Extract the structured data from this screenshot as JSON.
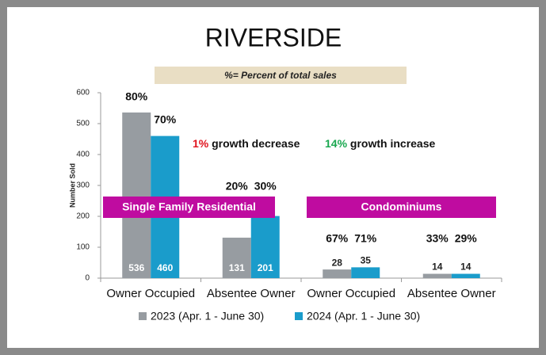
{
  "chart_data": {
    "type": "bar",
    "title": "RIVERSIDE",
    "subtitle": "%= Percent of total sales",
    "y_label": "Number Sold",
    "categories": [
      "Owner Occupied",
      "Absentee Owner",
      "Owner Occupied",
      "Absentee Owner"
    ],
    "series": [
      {
        "name": "2023 (Apr. 1 - June 30)",
        "color": "#979ca1",
        "values": [
          536,
          131,
          28,
          14
        ],
        "percent_labels": [
          "80%",
          "20%",
          "67%",
          "33%"
        ]
      },
      {
        "name": "2024 (Apr. 1 - June 30)",
        "color": "#1a9ccb",
        "values": [
          460,
          201,
          35,
          14
        ],
        "percent_labels": [
          "70%",
          "30%",
          "71%",
          "29%"
        ]
      }
    ],
    "ylim": [
      0,
      600
    ],
    "yticks": [
      0,
      100,
      200,
      300,
      400,
      500,
      600
    ],
    "annotations": [
      {
        "highlight": "1%",
        "text": "growth decrease",
        "color": "#e0141e"
      },
      {
        "highlight": "14%",
        "text": "growth increase",
        "color": "#1aa850"
      }
    ],
    "banners": [
      "Single Family Residential",
      "Condominiums"
    ],
    "banner_color": "#bf0ca0"
  }
}
